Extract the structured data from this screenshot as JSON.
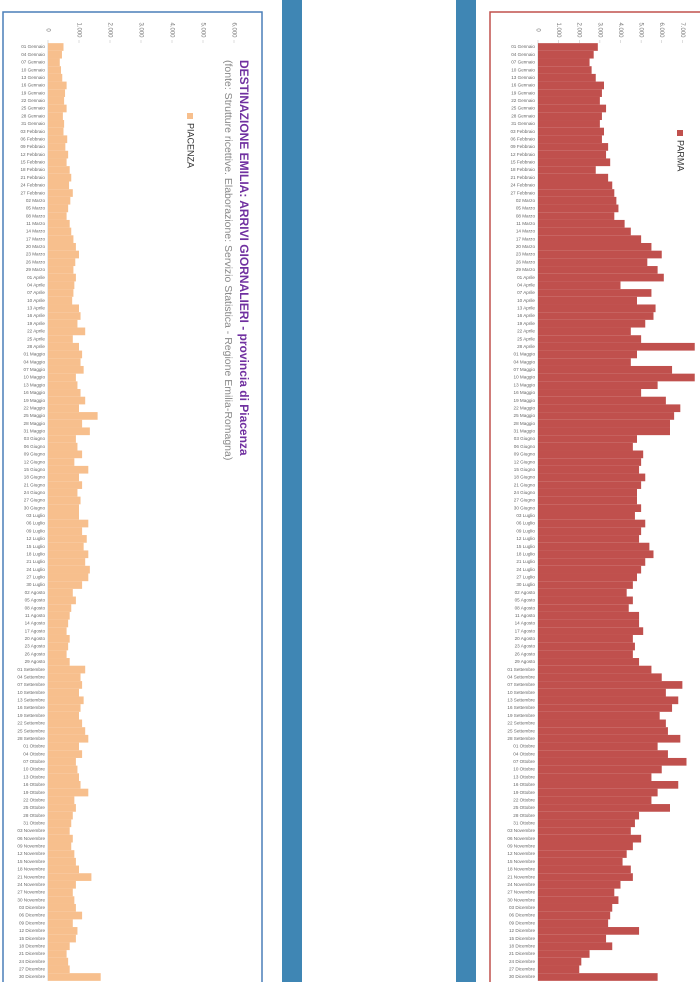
{
  "chart_data": [
    {
      "type": "bar",
      "orientation": "horizontal",
      "title": "DESTINAZIONE EMILIA: ARRIVI GIORNALIERI - provincia di Piacenza",
      "subtitle": "(fonte: Strutture ricettive. Elaborazione: Servizio Statistica - Regione Emilia-Romagna)",
      "categories": [
        "01 Gennaio",
        "04 Gennaio",
        "07 Gennaio",
        "10 Gennaio",
        "13 Gennaio",
        "16 Gennaio",
        "19 Gennaio",
        "22 Gennaio",
        "25 Gennaio",
        "28 Gennaio",
        "31 Gennaio",
        "03 Febbraio",
        "06 Febbraio",
        "09 Febbraio",
        "12 Febbraio",
        "15 Febbraio",
        "18 Febbraio",
        "21 Febbraio",
        "24 Febbraio",
        "27 Febbraio",
        "02 Marzo",
        "05 Marzo",
        "08 Marzo",
        "11 Marzo",
        "14 Marzo",
        "17 Marzo",
        "20 Marzo",
        "23 Marzo",
        "26 Marzo",
        "29 Marzo",
        "01 Aprile",
        "04 Aprile",
        "07 Aprile",
        "10 Aprile",
        "13 Aprile",
        "16 Aprile",
        "19 Aprile",
        "22 Aprile",
        "25 Aprile",
        "28 Aprile",
        "01 Maggio",
        "04 Maggio",
        "07 Maggio",
        "10 Maggio",
        "13 Maggio",
        "16 Maggio",
        "19 Maggio",
        "22 Maggio",
        "25 Maggio",
        "28 Maggio",
        "31 Maggio",
        "03 Giugno",
        "06 Giugno",
        "09 Giugno",
        "12 Giugno",
        "15 Giugno",
        "18 Giugno",
        "21 Giugno",
        "24 Giugno",
        "27 Giugno",
        "30 Giugno",
        "03 Luglio",
        "06 Luglio",
        "09 Luglio",
        "12 Luglio",
        "15 Luglio",
        "18 Luglio",
        "21 Luglio",
        "24 Luglio",
        "27 Luglio",
        "30 Luglio",
        "02 Agosto",
        "05 Agosto",
        "08 Agosto",
        "11 Agosto",
        "14 Agosto",
        "17 Agosto",
        "20 Agosto",
        "23 Agosto",
        "26 Agosto",
        "29 Agosto",
        "01 Settembre",
        "04 Settembre",
        "07 Settembre",
        "10 Settembre",
        "13 Settembre",
        "16 Settembre",
        "19 Settembre",
        "22 Settembre",
        "25 Settembre",
        "28 Settembre",
        "01 Ottobre",
        "04 Ottobre",
        "07 Ottobre",
        "10 Ottobre",
        "13 Ottobre",
        "16 Ottobre",
        "19 Ottobre",
        "22 Ottobre",
        "25 Ottobre",
        "28 Ottobre",
        "31 Ottobre",
        "03 Novembre",
        "06 Novembre",
        "09 Novembre",
        "12 Novembre",
        "15 Novembre",
        "18 Novembre",
        "21 Novembre",
        "24 Novembre",
        "27 Novembre",
        "30 Novembre",
        "03 Dicembre",
        "06 Dicembre",
        "09 Dicembre",
        "12 Dicembre",
        "15 Dicembre",
        "18 Dicembre",
        "21 Dicembre",
        "24 Dicembre",
        "27 Dicembre",
        "30 Dicembre"
      ],
      "series": [
        {
          "name": "PIACENZA",
          "color": "#f7bf8d",
          "values": [
            500,
            450,
            380,
            420,
            460,
            600,
            550,
            520,
            600,
            480,
            520,
            500,
            620,
            560,
            650,
            600,
            700,
            750,
            680,
            800,
            720,
            650,
            600,
            700,
            750,
            820,
            900,
            1000,
            880,
            820,
            900,
            850,
            820,
            780,
            1000,
            1050,
            950,
            1200,
            800,
            1000,
            1100,
            1050,
            1150,
            900,
            950,
            1050,
            1200,
            1000,
            1600,
            1100,
            1350,
            900,
            950,
            1100,
            850,
            1300,
            1000,
            1100,
            950,
            1050,
            1000,
            1000,
            1300,
            1100,
            1250,
            1150,
            1300,
            1200,
            1350,
            1300,
            1100,
            800,
            900,
            750,
            700,
            650,
            600,
            700,
            650,
            600,
            700,
            1200,
            1050,
            1100,
            1000,
            1150,
            1050,
            1000,
            1100,
            1200,
            1300,
            1000,
            1100,
            900,
            950,
            1000,
            1050,
            1300,
            850,
            900,
            800,
            750,
            700,
            800,
            750,
            850,
            900,
            1000,
            1400,
            900,
            800,
            850,
            900,
            1100,
            800,
            950,
            900,
            700,
            600,
            650,
            700,
            1700
          ]
        }
      ],
      "ylim": [
        0,
        6000
      ],
      "yticks": [
        0,
        {
          "value": 1000,
          "label": "1.000"
        },
        {
          "value": 2000,
          "label": "2.000"
        },
        {
          "value": 3000,
          "label": "3.000"
        },
        {
          "value": 4000,
          "label": "4.000"
        },
        {
          "value": 5000,
          "label": "5.000"
        },
        {
          "value": 6000,
          "label": "6.000"
        }
      ]
    },
    {
      "type": "bar",
      "orientation": "horizontal",
      "categories": [
        "01 Gennaio",
        "04 Gennaio",
        "07 Gennaio",
        "10 Gennaio",
        "13 Gennaio",
        "16 Gennaio",
        "19 Gennaio",
        "22 Gennaio",
        "25 Gennaio",
        "28 Gennaio",
        "31 Gennaio",
        "03 Febbraio",
        "06 Febbraio",
        "09 Febbraio",
        "12 Febbraio",
        "15 Febbraio",
        "18 Febbraio",
        "21 Febbraio",
        "24 Febbraio",
        "27 Febbraio",
        "02 Marzo",
        "05 Marzo",
        "08 Marzo",
        "11 Marzo",
        "14 Marzo",
        "17 Marzo",
        "20 Marzo",
        "23 Marzo",
        "26 Marzo",
        "29 Marzo",
        "01 Aprile",
        "04 Aprile",
        "07 Aprile",
        "10 Aprile",
        "13 Aprile",
        "16 Aprile",
        "19 Aprile",
        "22 Aprile",
        "25 Aprile",
        "28 Aprile",
        "01 Maggio",
        "04 Maggio",
        "07 Maggio",
        "10 Maggio",
        "13 Maggio",
        "16 Maggio",
        "19 Maggio",
        "22 Maggio",
        "25 Maggio",
        "28 Maggio",
        "31 Maggio",
        "03 Giugno",
        "06 Giugno",
        "09 Giugno",
        "12 Giugno",
        "15 Giugno",
        "18 Giugno",
        "21 Giugno",
        "24 Giugno",
        "27 Giugno",
        "30 Giugno",
        "03 Luglio",
        "06 Luglio",
        "09 Luglio",
        "12 Luglio",
        "15 Luglio",
        "18 Luglio",
        "21 Luglio",
        "24 Luglio",
        "27 Luglio",
        "30 Luglio",
        "02 Agosto",
        "05 Agosto",
        "08 Agosto",
        "11 Agosto",
        "14 Agosto",
        "17 Agosto",
        "20 Agosto",
        "23 Agosto",
        "26 Agosto",
        "29 Agosto",
        "01 Settembre",
        "04 Settembre",
        "07 Settembre",
        "10 Settembre",
        "13 Settembre",
        "16 Settembre",
        "19 Settembre",
        "22 Settembre",
        "25 Settembre",
        "28 Settembre",
        "01 Ottobre",
        "04 Ottobre",
        "07 Ottobre",
        "10 Ottobre",
        "13 Ottobre",
        "16 Ottobre",
        "19 Ottobre",
        "22 Ottobre",
        "25 Ottobre",
        "28 Ottobre",
        "31 Ottobre",
        "03 Novembre",
        "06 Novembre",
        "09 Novembre",
        "12 Novembre",
        "15 Novembre",
        "18 Novembre",
        "21 Novembre",
        "24 Novembre",
        "27 Novembre",
        "30 Novembre",
        "03 Dicembre",
        "06 Dicembre",
        "09 Dicembre",
        "12 Dicembre",
        "15 Dicembre",
        "18 Dicembre",
        "21 Dicembre",
        "24 Dicembre",
        "27 Dicembre",
        "30 Dicembre"
      ],
      "series": [
        {
          "name": "PARMA",
          "color": "#c0504d",
          "values": [
            2900,
            2700,
            2500,
            2600,
            2800,
            3200,
            3100,
            3000,
            3300,
            3100,
            3000,
            3200,
            3100,
            3400,
            3300,
            3500,
            2800,
            3400,
            3600,
            3700,
            3800,
            3900,
            3700,
            4200,
            4500,
            5000,
            5500,
            6000,
            5300,
            5800,
            6100,
            4000,
            5500,
            4800,
            5700,
            5600,
            5200,
            4500,
            5000,
            7600,
            4800,
            4500,
            6500,
            7600,
            5800,
            5000,
            6200,
            6900,
            6600,
            6400,
            6400,
            4800,
            4600,
            5100,
            5000,
            4900,
            5200,
            5000,
            4800,
            4800,
            5000,
            4700,
            5200,
            5000,
            4900,
            5400,
            5600,
            5200,
            5000,
            4800,
            4600,
            4300,
            4600,
            4400,
            4900,
            4900,
            5100,
            4600,
            4700,
            4600,
            4900,
            5500,
            6000,
            7000,
            6200,
            6800,
            6500,
            5900,
            6200,
            6300,
            6900,
            5800,
            6300,
            7200,
            6000,
            5500,
            6800,
            5800,
            5500,
            6400,
            4900,
            4700,
            4500,
            5000,
            4600,
            4300,
            4100,
            4500,
            4600,
            4000,
            3700,
            3900,
            3600,
            3500,
            3400,
            4900,
            3300,
            3600,
            2500,
            2100,
            2000,
            5800
          ]
        }
      ],
      "ylim": [
        0,
        8000
      ],
      "yticks": [
        0,
        {
          "value": 1000,
          "label": "1.000"
        },
        {
          "value": 2000,
          "label": "2.000"
        },
        {
          "value": 3000,
          "label": "3.000"
        },
        {
          "value": 4000,
          "label": "4.000"
        },
        {
          "value": 5000,
          "label": "5.000"
        },
        {
          "value": 6000,
          "label": "6.000"
        },
        {
          "value": 7000,
          "label": "7.000"
        }
      ]
    }
  ]
}
